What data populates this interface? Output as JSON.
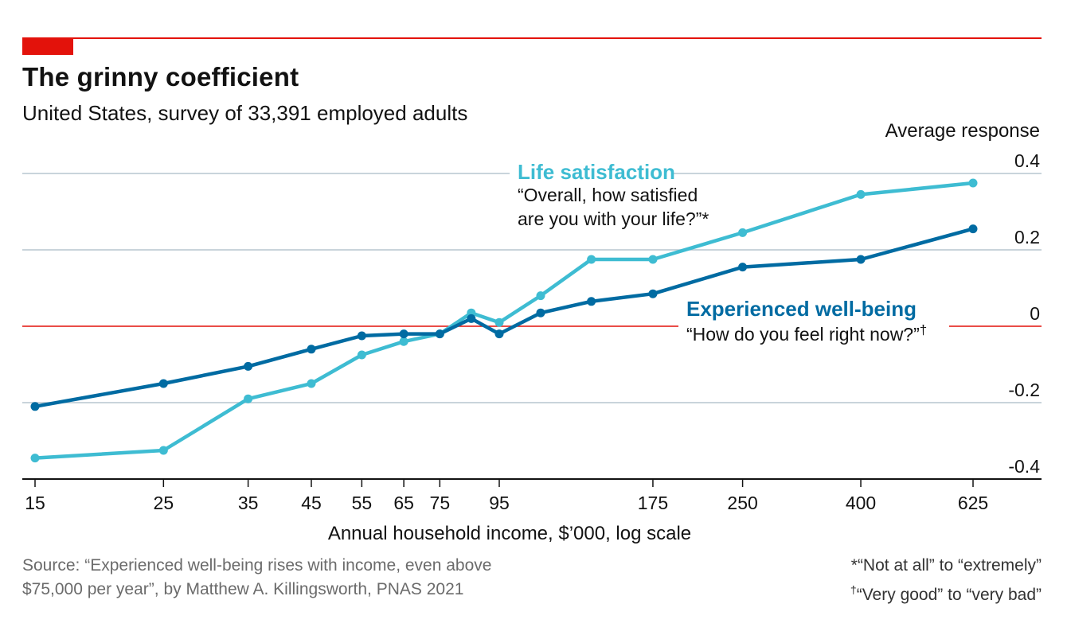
{
  "header": {
    "title": "The grinny coefficient",
    "subtitle": "United States, survey of 33,391 employed adults"
  },
  "footer": {
    "source_line1": "Source: “Experienced well-being rises with income, even above",
    "source_line2": "$75,000 per year”, by Matthew A. Killingsworth, PNAS 2021",
    "note1_mark": "*",
    "note1_text": "“Not at all” to “extremely”",
    "note2_mark": "†",
    "note2_text": "“Very good” to “very bad”"
  },
  "colors": {
    "brand_red": "#e3120b",
    "life_satisfaction": "#3ebcd2",
    "experienced_wellbeing": "#006ba2",
    "gridline": "#b7c6cf",
    "zero_line": "#e3120b"
  },
  "chart_data": {
    "type": "line",
    "title": "The grinny coefficient",
    "subtitle": "United States, survey of 33,391 employed adults",
    "xlabel": "Annual household income, $’000, log scale",
    "ylabel": "Average response",
    "x_scale": "log",
    "xlim": [
      14,
      800
    ],
    "ylim": [
      -0.4,
      0.4
    ],
    "y_ticks": [
      0.4,
      0.2,
      0,
      -0.2,
      -0.4
    ],
    "y_tick_labels": [
      "0.4",
      "0.2",
      "0",
      "-0.2",
      "-0.4"
    ],
    "x_ticks": [
      15,
      25,
      35,
      45,
      55,
      65,
      75,
      95,
      175,
      250,
      400,
      625
    ],
    "x_tick_labels": [
      "15",
      "25",
      "35",
      "45",
      "55",
      "65",
      "75",
      "95",
      "175",
      "250",
      "400",
      "625"
    ],
    "grid": true,
    "series": [
      {
        "name": "Life satisfaction",
        "question": "“Overall, how satisfied",
        "question_line2": "are you with your life?”",
        "question_mark": "*",
        "color": "#3ebcd2",
        "x": [
          15,
          25,
          35,
          45,
          55,
          65,
          75,
          85,
          95,
          112,
          137,
          175,
          250,
          400,
          625
        ],
        "y": [
          -0.345,
          -0.325,
          -0.19,
          -0.15,
          -0.075,
          -0.04,
          -0.02,
          0.035,
          0.01,
          0.08,
          0.175,
          0.175,
          0.245,
          0.345,
          0.375
        ]
      },
      {
        "name": "Experienced well-being",
        "question": "“How do you feel right now?”",
        "question_mark": "†",
        "color": "#006ba2",
        "x": [
          15,
          25,
          35,
          45,
          55,
          65,
          75,
          85,
          95,
          112,
          137,
          175,
          250,
          400,
          625
        ],
        "y": [
          -0.21,
          -0.15,
          -0.105,
          -0.06,
          -0.025,
          -0.02,
          -0.02,
          0.02,
          -0.02,
          0.035,
          0.065,
          0.085,
          0.155,
          0.175,
          0.255
        ]
      }
    ]
  }
}
